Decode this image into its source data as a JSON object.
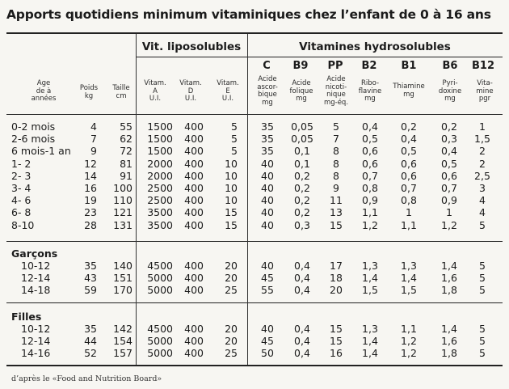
{
  "title": "Apports quotidiens minimum vitaminiques chez l’enfant de 0 à 16 ans",
  "groups": {
    "liposolubles": "Vit. liposolubles",
    "hydrosolubles": "Vitamines hydrosolubles"
  },
  "vitamins": [
    "C",
    "B9",
    "PP",
    "B2",
    "B1",
    "B6",
    "B12"
  ],
  "column_headers": {
    "age": "Age\nde à\nannées",
    "poids": "Poids\nkg",
    "taille": "Taille\ncm",
    "vitA": "Vitam.\nA\nU.I.",
    "vitD": "Vitam.\nD\nU.I.",
    "vitE": "Vitam.\nE\nU.I.",
    "C": "Acide\nascor-\nbique\nmg",
    "B9": "Acide\nfolique\nmg",
    "PP": "Acide\nnicoti-\nnique\nmg-éq.",
    "B2": "Ribo-\nflavine\nmg",
    "B1": "Thiamine\nmg",
    "B6": "Pyri-\ndoxine\nmg",
    "B12": "Vita-\nmine\npgr"
  },
  "sections": [
    {
      "label": "",
      "rows": [
        [
          "0-2 mois",
          "4",
          "55",
          "1500",
          "400",
          "5",
          "35",
          "0,05",
          "5",
          "0,4",
          "0,2",
          "0,2",
          "1"
        ],
        [
          "2-6 mois",
          "7",
          "62",
          "1500",
          "400",
          "5",
          "35",
          "0,05",
          "7",
          "0,5",
          "0,4",
          "0,3",
          "1,5"
        ],
        [
          "6 mois-1 an",
          "9",
          "72",
          "1500",
          "400",
          "5",
          "35",
          "0,1",
          "8",
          "0,6",
          "0,5",
          "0,4",
          "2"
        ],
        [
          "1- 2",
          "12",
          "81",
          "2000",
          "400",
          "10",
          "40",
          "0,1",
          "8",
          "0,6",
          "0,6",
          "0,5",
          "2"
        ],
        [
          "2- 3",
          "14",
          "91",
          "2000",
          "400",
          "10",
          "40",
          "0,2",
          "8",
          "0,7",
          "0,6",
          "0,6",
          "2,5"
        ],
        [
          "3- 4",
          "16",
          "100",
          "2500",
          "400",
          "10",
          "40",
          "0,2",
          "9",
          "0,8",
          "0,7",
          "0,7",
          "3"
        ],
        [
          "4- 6",
          "19",
          "110",
          "2500",
          "400",
          "10",
          "40",
          "0,2",
          "11",
          "0,9",
          "0,8",
          "0,9",
          "4"
        ],
        [
          "6- 8",
          "23",
          "121",
          "3500",
          "400",
          "15",
          "40",
          "0,2",
          "13",
          "1,1",
          "1",
          "1",
          "4"
        ],
        [
          "8-10",
          "28",
          "131",
          "3500",
          "400",
          "15",
          "40",
          "0,3",
          "15",
          "1,2",
          "1,1",
          "1,2",
          "5"
        ]
      ]
    },
    {
      "label": "Garçons",
      "rows": [
        [
          "10-12",
          "35",
          "140",
          "4500",
          "400",
          "20",
          "40",
          "0,4",
          "17",
          "1,3",
          "1,3",
          "1,4",
          "5"
        ],
        [
          "12-14",
          "43",
          "151",
          "5000",
          "400",
          "20",
          "45",
          "0,4",
          "18",
          "1,4",
          "1,4",
          "1,6",
          "5"
        ],
        [
          "14-18",
          "59",
          "170",
          "5000",
          "400",
          "25",
          "55",
          "0,4",
          "20",
          "1,5",
          "1,5",
          "1,8",
          "5"
        ]
      ]
    },
    {
      "label": "Filles",
      "rows": [
        [
          "10-12",
          "35",
          "142",
          "4500",
          "400",
          "20",
          "40",
          "0,4",
          "15",
          "1,3",
          "1,1",
          "1,4",
          "5"
        ],
        [
          "12-14",
          "44",
          "154",
          "5000",
          "400",
          "20",
          "45",
          "0,4",
          "15",
          "1,4",
          "1,2",
          "1,6",
          "5"
        ],
        [
          "14-16",
          "52",
          "157",
          "5000",
          "400",
          "25",
          "50",
          "0,4",
          "16",
          "1,4",
          "1,2",
          "1,8",
          "5"
        ]
      ]
    }
  ],
  "source": "d’après le «Food and Nutrition Board»"
}
